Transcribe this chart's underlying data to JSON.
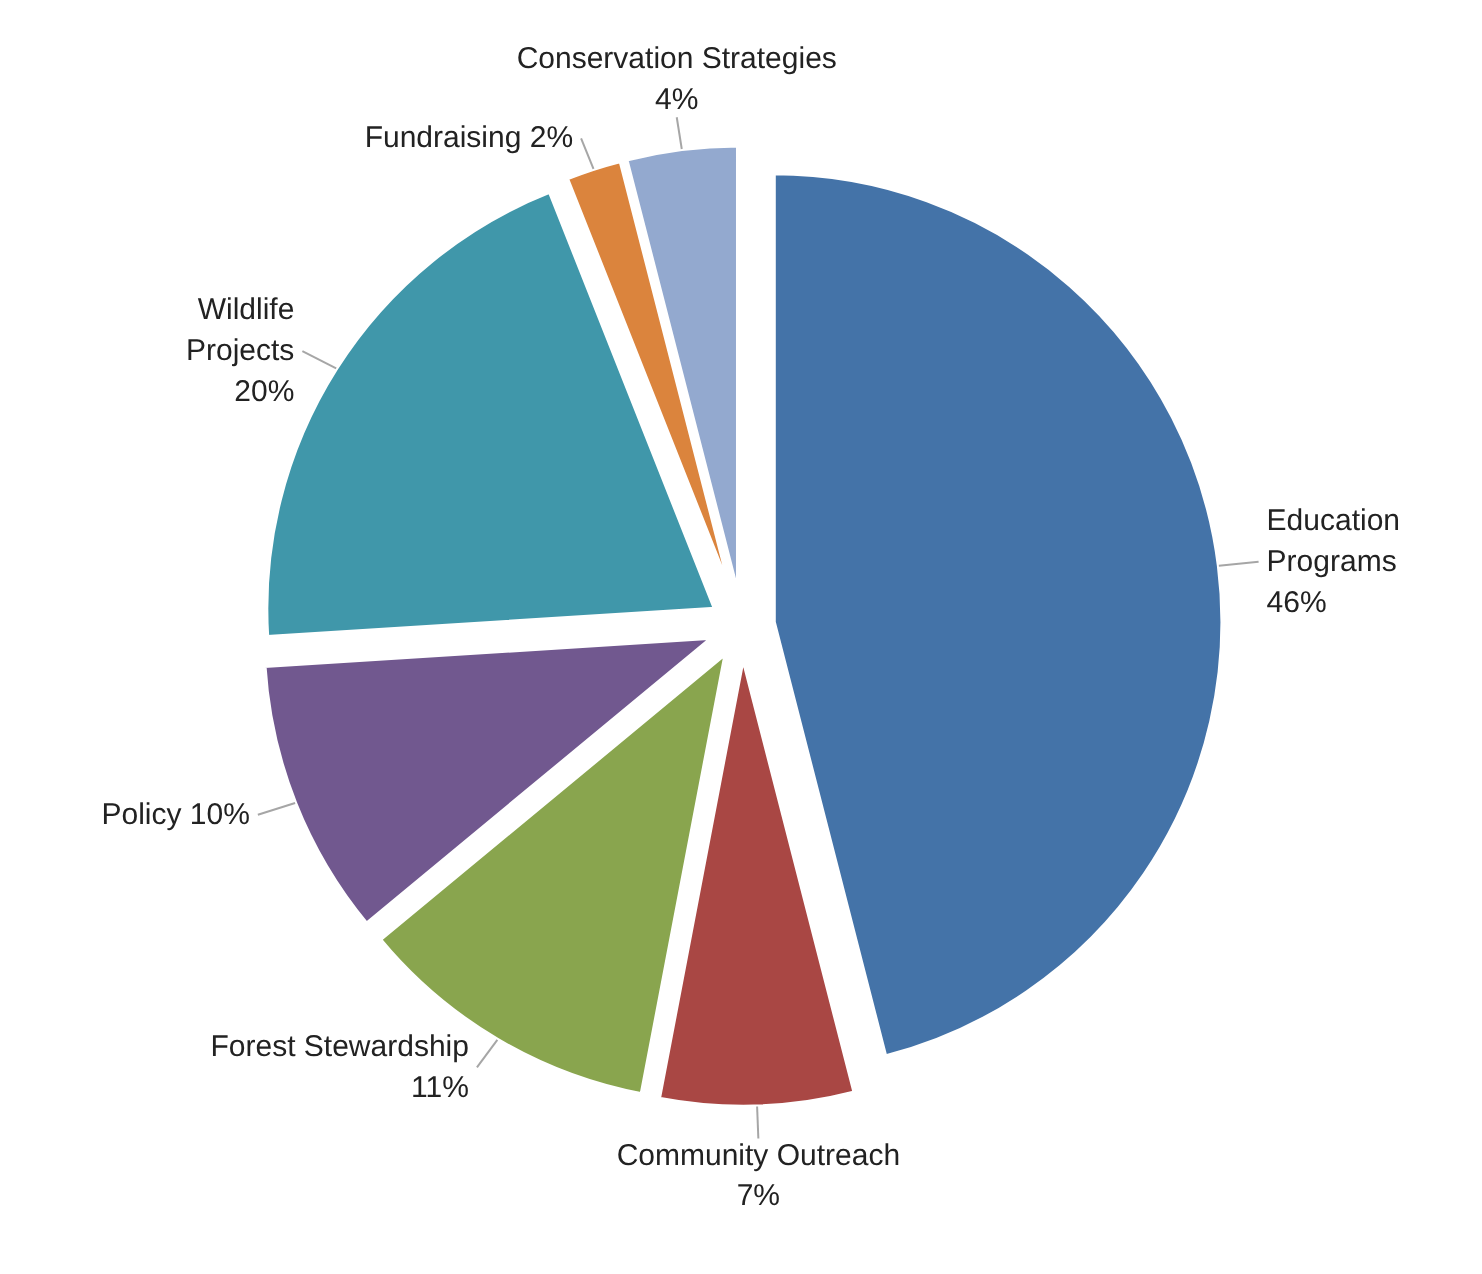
{
  "chart_data": {
    "type": "pie",
    "categories": [
      "Education Programs",
      "Community Outreach",
      "Forest Stewardship",
      "Policy",
      "Wildlife Projects",
      "Fundraising",
      "Conservation Strategies"
    ],
    "values": [
      46,
      7,
      11,
      10,
      20,
      2,
      4
    ],
    "value_labels": [
      "46%",
      "7%",
      "11%",
      "10%",
      "20%",
      "2%",
      "4%"
    ],
    "colors": [
      "#4473a8",
      "#a94744",
      "#89a54e",
      "#71588f",
      "#4097aa",
      "#db843d",
      "#93a9cf"
    ]
  }
}
